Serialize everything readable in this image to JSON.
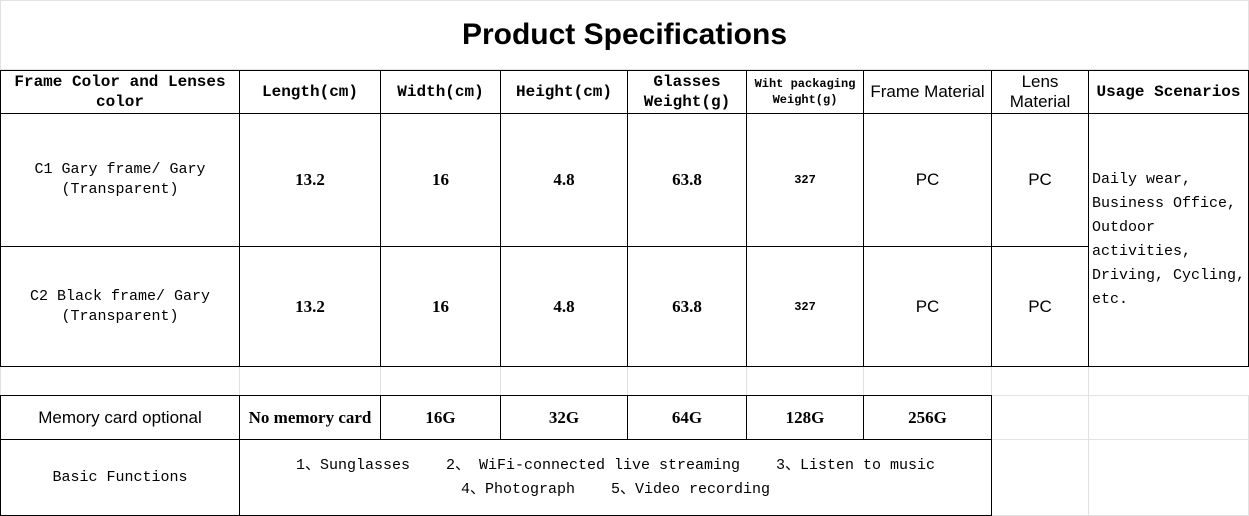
{
  "title": "Product Specifications",
  "table": {
    "header": [
      "Frame Color and Lenses color",
      "Length(cm)",
      "Width(cm)",
      "Height(cm)",
      "Glasses Weight(g)",
      "Wiht packaging Weight(g)",
      "Frame Material",
      "Lens Material",
      "Usage Scenarios"
    ],
    "rows": [
      [
        "C1 Gary frame/ Gary (Transparent)",
        "13.2",
        "16",
        "4.8",
        "63.8",
        "327",
        "PC",
        "PC"
      ],
      [
        "C2 Black frame/ Gary (Transparent)",
        "13.2",
        "16",
        "4.8",
        "63.8",
        "327",
        "PC",
        "PC"
      ]
    ],
    "usage": "Daily wear, Business Office, Outdoor activities, Driving, Cycling, etc."
  },
  "memory": {
    "label": "Memory card optional",
    "options": [
      "No memory card",
      "16G",
      "32G",
      "64G",
      "128G",
      "256G"
    ]
  },
  "functions": {
    "label": "Basic Functions",
    "items": [
      "1、Sunglasses",
      "2、 WiFi-connected live streaming",
      "3、Listen to music",
      "4、Photograph",
      "5、Video recording"
    ]
  }
}
